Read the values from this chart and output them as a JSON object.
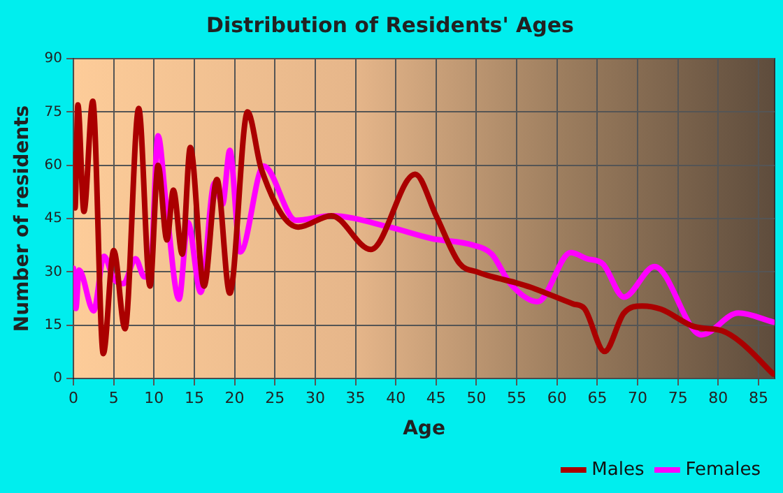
{
  "chart_data": {
    "type": "line",
    "title": "Distribution of Residents' Ages",
    "xlabel": "Age",
    "ylabel": "Number of residents",
    "xlim": [
      0,
      87
    ],
    "xticks": [
      0,
      5,
      10,
      15,
      20,
      25,
      30,
      35,
      40,
      45,
      50,
      55,
      60,
      65,
      70,
      75,
      80,
      85
    ],
    "ylim": [
      0,
      90
    ],
    "yticks": [
      0,
      15,
      30,
      45,
      60,
      75,
      90
    ],
    "grid": true,
    "legend": "bottom right",
    "marker": "none",
    "line_style": "solid",
    "series": [
      {
        "name": "Males",
        "color": "#aa0000",
        "x": [
          0,
          0.2,
          0.55,
          1.3,
          2.4,
          3.7,
          5,
          6.4,
          8.1,
          9.5,
          10.5,
          11.6,
          12.4,
          13.5,
          14.5,
          16.2,
          17.8,
          19.4,
          21.6,
          23.3,
          27.9,
          32,
          36.9,
          42.4,
          45,
          47.9,
          50.2,
          52,
          54.8,
          56.7,
          62,
          63.4,
          65.9,
          68.3,
          70.6,
          72.9,
          77,
          80.5,
          82.8,
          86.8
        ],
        "values": [
          63,
          48,
          77,
          47,
          78,
          7,
          36,
          14,
          76,
          26,
          60,
          39,
          53,
          35,
          65,
          26,
          56,
          24,
          75,
          59,
          42.6,
          45.8,
          36.3,
          57.5,
          45.8,
          32.4,
          29.9,
          28.6,
          27,
          25.7,
          21,
          19.7,
          7.6,
          18.4,
          20.4,
          19.5,
          14.6,
          13.4,
          10.2,
          1.3
        ]
      },
      {
        "name": "Females",
        "color": "#ff00ff",
        "x": [
          0,
          0.3,
          0.7,
          2.5,
          3.8,
          5,
          6.2,
          7.7,
          8.8,
          9.5,
          10.5,
          11.5,
          13.1,
          14.2,
          15.8,
          17.5,
          18.5,
          19.4,
          20.7,
          23.6,
          27.6,
          32,
          39.2,
          44.4,
          49.6,
          51.9,
          54.2,
          57.6,
          61.7,
          63.7,
          65.7,
          68.3,
          72.1,
          77.9,
          82.5,
          86.8
        ],
        "values": [
          31,
          19.7,
          30.5,
          19,
          34.4,
          28,
          26.7,
          33.7,
          28.6,
          28.6,
          68.3,
          49,
          22.3,
          43.9,
          24.2,
          55,
          49,
          64.2,
          35.6,
          59.8,
          44.5,
          45.8,
          42.6,
          39.4,
          37.5,
          35,
          26.7,
          21.6,
          35.4,
          33.7,
          32.2,
          22.9,
          31.5,
          12.3,
          18.4,
          15.9
        ]
      }
    ]
  }
}
